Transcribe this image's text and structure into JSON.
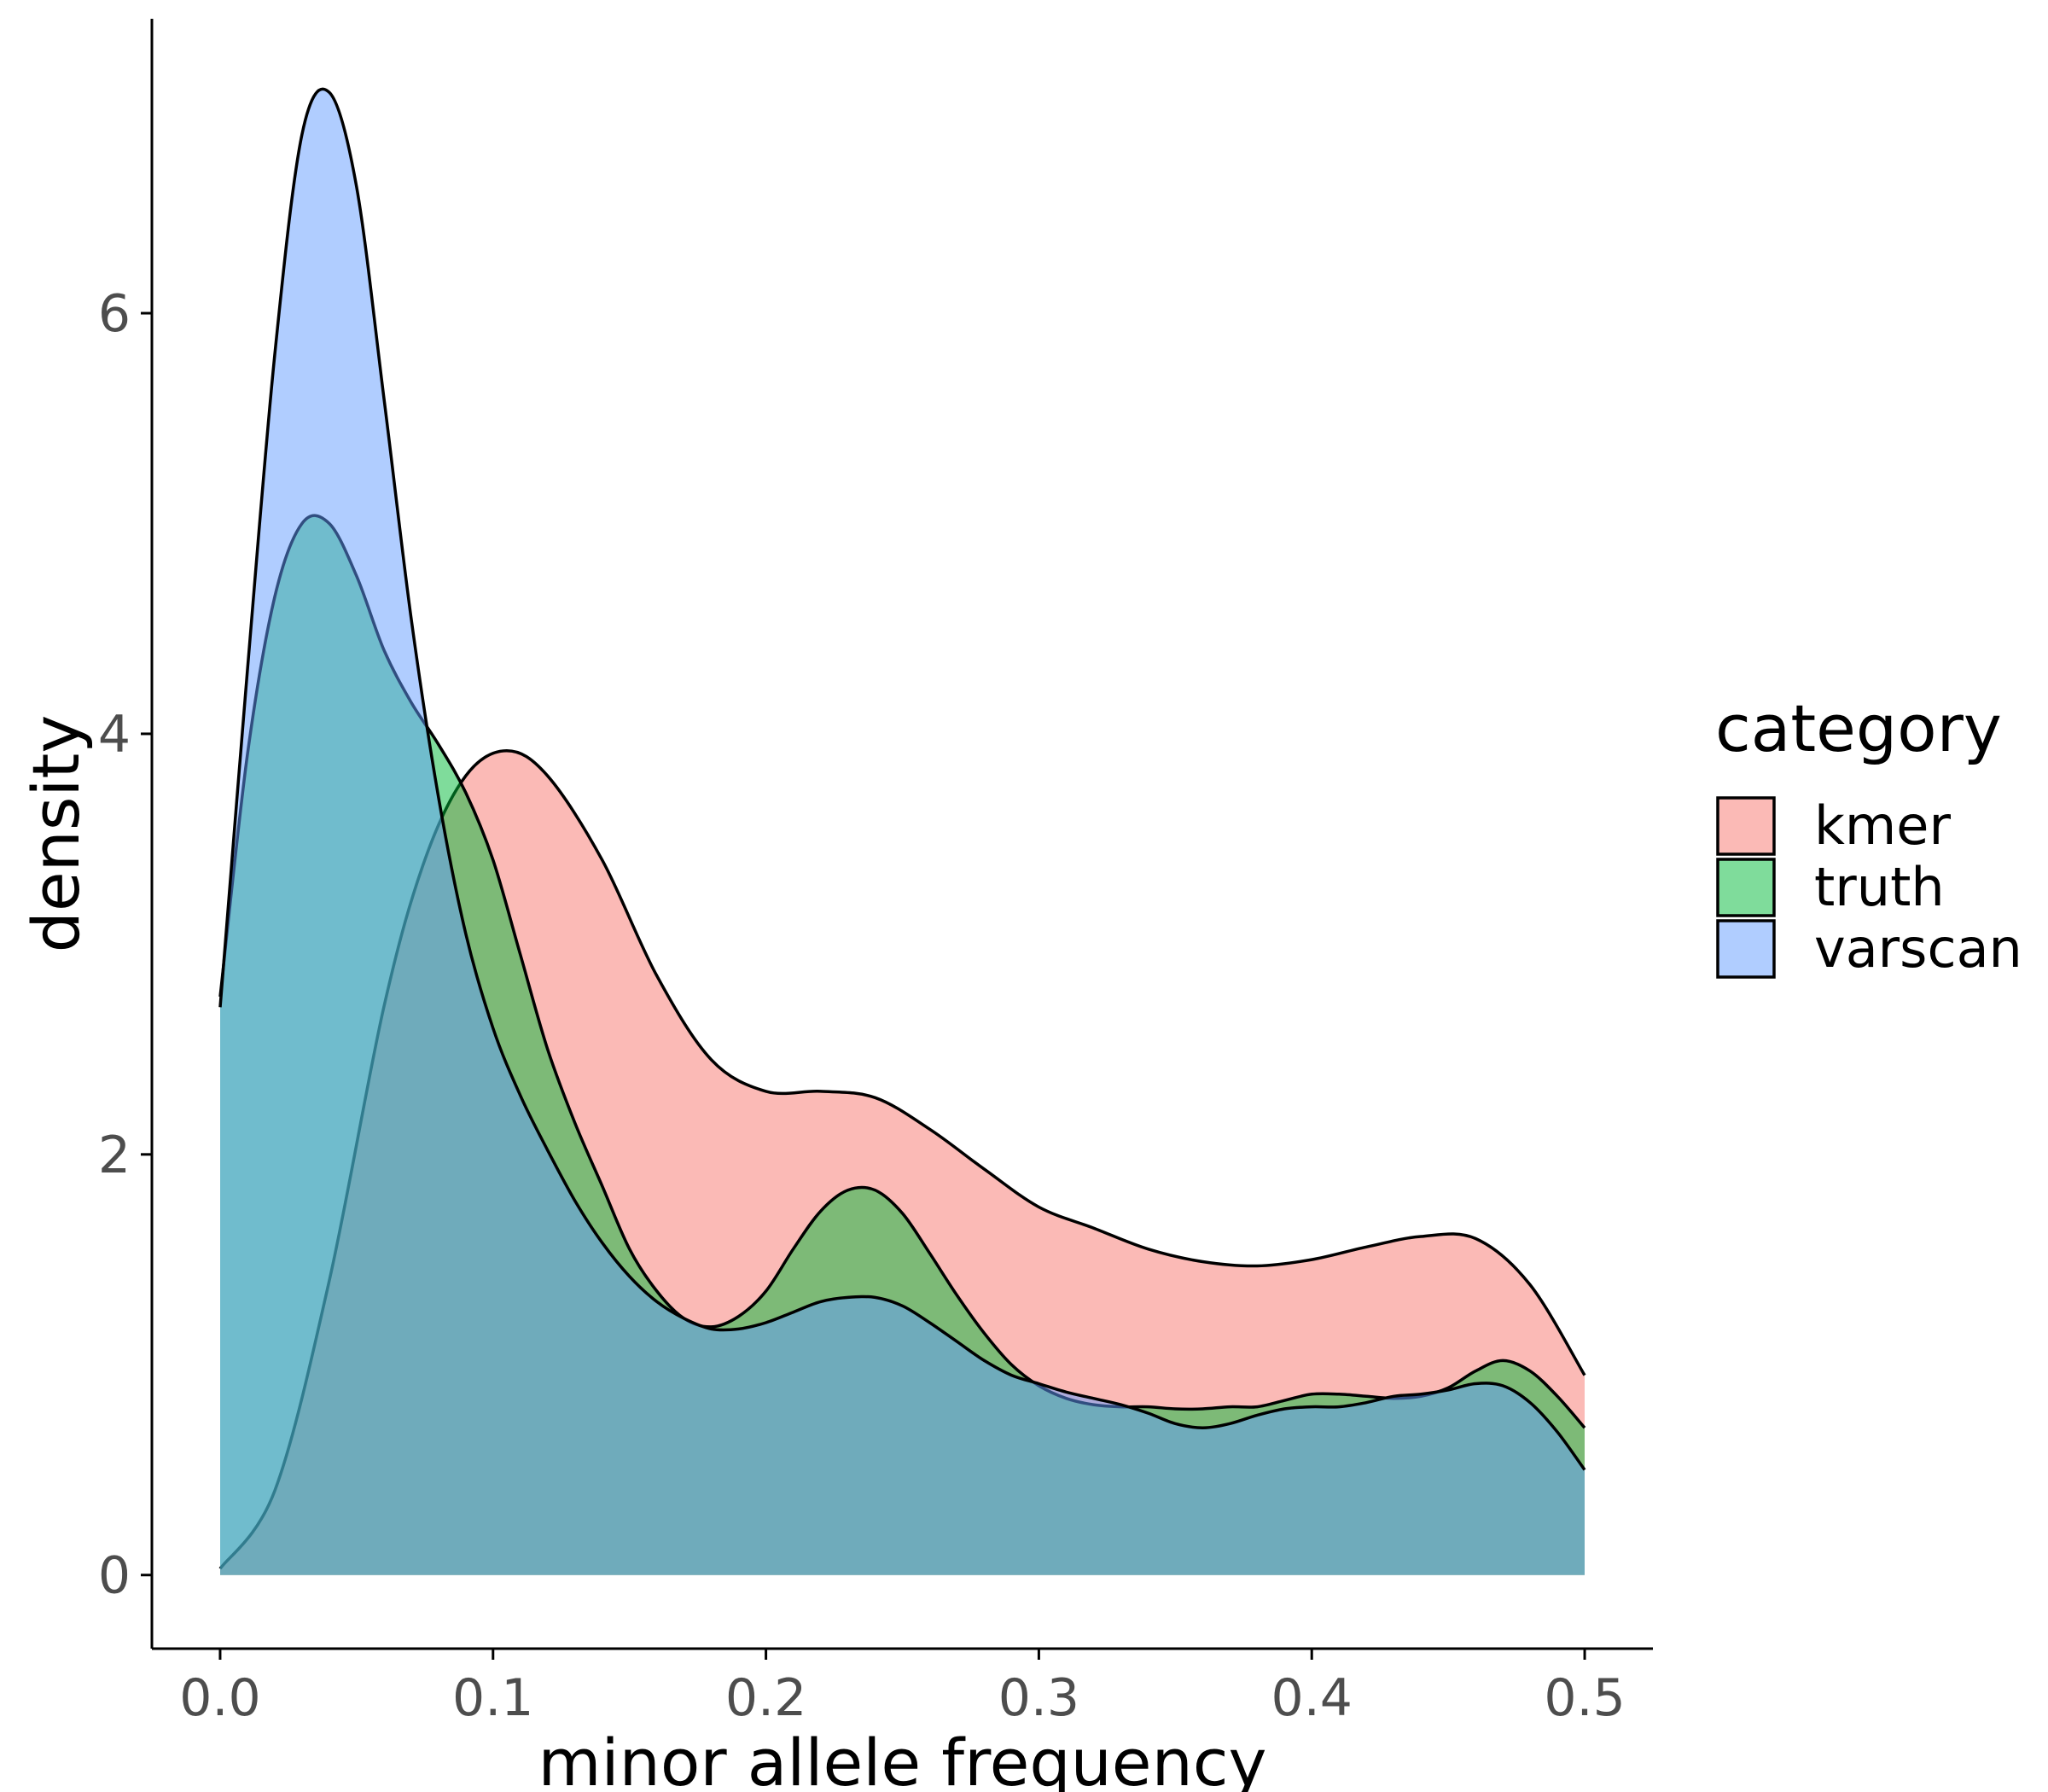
{
  "chart_data": {
    "type": "area",
    "xlabel": "minor allele frequency",
    "ylabel": "density",
    "xlim": [
      -0.025,
      0.525
    ],
    "ylim": [
      -0.35,
      7.4
    ],
    "x_ticks": [
      0.0,
      0.1,
      0.2,
      0.3,
      0.4,
      0.5
    ],
    "x_tick_labels": [
      "0.0",
      "0.1",
      "0.2",
      "0.3",
      "0.4",
      "0.5"
    ],
    "y_ticks": [
      0,
      2,
      4,
      6
    ],
    "y_tick_labels": [
      "0",
      "2",
      "4",
      "6"
    ],
    "grid": false,
    "legend": {
      "title": "category",
      "placement": "right",
      "entries": [
        "kmer",
        "truth",
        "varscan"
      ]
    },
    "fill_opacity": 0.5,
    "series": [
      {
        "name": "kmer",
        "color": "#F8766D",
        "x": [
          0.0,
          0.02,
          0.04,
          0.06,
          0.075,
          0.09,
          0.105,
          0.12,
          0.14,
          0.16,
          0.18,
          0.2,
          0.22,
          0.24,
          0.26,
          0.28,
          0.3,
          0.32,
          0.34,
          0.36,
          0.38,
          0.4,
          0.42,
          0.44,
          0.46,
          0.48,
          0.5
        ],
        "y": [
          0.03,
          0.4,
          1.4,
          2.7,
          3.4,
          3.8,
          3.92,
          3.8,
          3.4,
          2.85,
          2.45,
          2.3,
          2.3,
          2.27,
          2.12,
          1.93,
          1.75,
          1.65,
          1.55,
          1.49,
          1.47,
          1.5,
          1.56,
          1.61,
          1.6,
          1.38,
          0.95
        ]
      },
      {
        "name": "truth",
        "color": "#00BA38",
        "x": [
          0.0,
          0.01,
          0.02,
          0.03,
          0.04,
          0.05,
          0.06,
          0.07,
          0.08,
          0.09,
          0.1,
          0.11,
          0.12,
          0.13,
          0.14,
          0.15,
          0.16,
          0.17,
          0.18,
          0.19,
          0.2,
          0.21,
          0.22,
          0.23,
          0.24,
          0.25,
          0.26,
          0.27,
          0.28,
          0.29,
          0.3,
          0.31,
          0.32,
          0.33,
          0.34,
          0.35,
          0.36,
          0.37,
          0.38,
          0.39,
          0.4,
          0.41,
          0.42,
          0.43,
          0.44,
          0.45,
          0.46,
          0.47,
          0.48,
          0.49,
          0.5
        ],
        "y": [
          2.75,
          3.9,
          4.65,
          5.0,
          5.0,
          4.75,
          4.4,
          4.15,
          3.95,
          3.72,
          3.4,
          2.95,
          2.5,
          2.15,
          1.85,
          1.55,
          1.35,
          1.22,
          1.18,
          1.23,
          1.35,
          1.55,
          1.73,
          1.83,
          1.83,
          1.72,
          1.53,
          1.33,
          1.15,
          1.0,
          0.9,
          0.84,
          0.81,
          0.8,
          0.8,
          0.79,
          0.79,
          0.8,
          0.8,
          0.83,
          0.86,
          0.86,
          0.85,
          0.84,
          0.85,
          0.89,
          0.97,
          1.02,
          0.97,
          0.85,
          0.7
        ]
      },
      {
        "name": "varscan",
        "color": "#619CFF",
        "x": [
          0.0,
          0.01,
          0.02,
          0.03,
          0.04,
          0.05,
          0.06,
          0.07,
          0.08,
          0.09,
          0.1,
          0.11,
          0.12,
          0.13,
          0.14,
          0.15,
          0.16,
          0.17,
          0.18,
          0.19,
          0.2,
          0.21,
          0.22,
          0.23,
          0.24,
          0.25,
          0.26,
          0.27,
          0.28,
          0.29,
          0.3,
          0.31,
          0.32,
          0.33,
          0.34,
          0.35,
          0.36,
          0.37,
          0.38,
          0.39,
          0.4,
          0.41,
          0.42,
          0.43,
          0.44,
          0.45,
          0.46,
          0.47,
          0.48,
          0.49,
          0.5
        ],
        "y": [
          2.7,
          4.3,
          5.8,
          6.85,
          7.05,
          6.6,
          5.6,
          4.55,
          3.7,
          3.05,
          2.6,
          2.28,
          2.02,
          1.78,
          1.58,
          1.42,
          1.3,
          1.22,
          1.17,
          1.17,
          1.2,
          1.25,
          1.3,
          1.32,
          1.32,
          1.28,
          1.2,
          1.11,
          1.02,
          0.95,
          0.91,
          0.87,
          0.84,
          0.81,
          0.77,
          0.72,
          0.7,
          0.72,
          0.76,
          0.79,
          0.8,
          0.8,
          0.82,
          0.85,
          0.86,
          0.88,
          0.91,
          0.9,
          0.82,
          0.68,
          0.5
        ]
      }
    ]
  }
}
